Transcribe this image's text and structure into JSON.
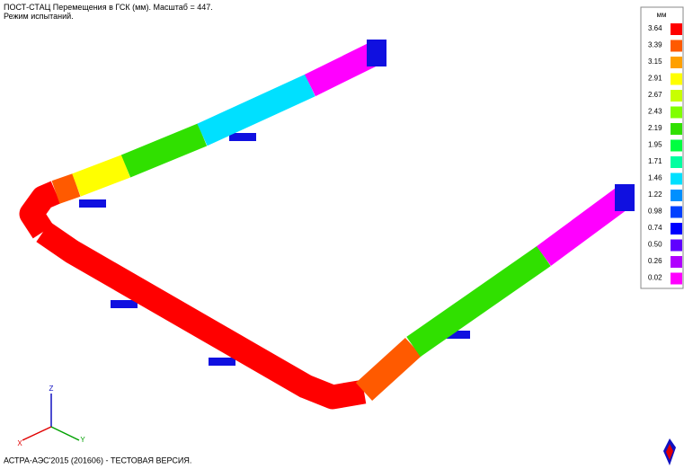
{
  "header": {
    "line1": "ПОСТ-СТАЦ Перемещения в ГСК (мм). Масштаб = 447.",
    "line2": "Режим испытаний."
  },
  "legend": {
    "unit": "мм",
    "items": [
      {
        "value": "3.64",
        "color": "#ff0000"
      },
      {
        "value": "3.39",
        "color": "#ff5a00"
      },
      {
        "value": "3.15",
        "color": "#ffa000"
      },
      {
        "value": "2.91",
        "color": "#ffff00"
      },
      {
        "value": "2.67",
        "color": "#c8ff00"
      },
      {
        "value": "2.43",
        "color": "#80ff00"
      },
      {
        "value": "2.19",
        "color": "#30e000"
      },
      {
        "value": "1.95",
        "color": "#00ff40"
      },
      {
        "value": "1.71",
        "color": "#00ffa0"
      },
      {
        "value": "1.46",
        "color": "#00e0ff"
      },
      {
        "value": "1.22",
        "color": "#0090ff"
      },
      {
        "value": "0.98",
        "color": "#0040ff"
      },
      {
        "value": "0.74",
        "color": "#0000ff"
      },
      {
        "value": "0.50",
        "color": "#6000ff"
      },
      {
        "value": "0.26",
        "color": "#b000ff"
      },
      {
        "value": "0.02",
        "color": "#ff00ff"
      }
    ]
  },
  "axes": {
    "z": "Z",
    "x": "X",
    "y": "Y"
  },
  "footer": "АСТРА-АЭС'2015 (201606) - ТЕСТОВАЯ ВЕРСИЯ."
}
